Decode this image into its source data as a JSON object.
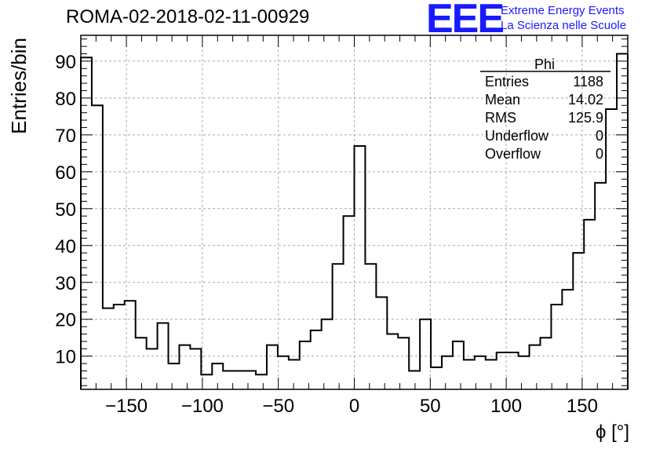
{
  "header": {
    "title": "ROMA-02-2018-02-11-00929",
    "logo": "EEE",
    "logo_line1": "Extreme Energy Events",
    "logo_line2": "La Scienza nelle Scuole"
  },
  "colors": {
    "logo": "#1a1aff",
    "line": "#000000",
    "grid": "#999999"
  },
  "stats_box": {
    "title": "Phi",
    "rows": [
      {
        "label": "Entries",
        "value": "1188"
      },
      {
        "label": "Mean",
        "value": "14.02"
      },
      {
        "label": "RMS",
        "value": "125.9"
      },
      {
        "label": "Underflow",
        "value": "0"
      },
      {
        "label": "Overflow",
        "value": "0"
      }
    ]
  },
  "chart_data": {
    "type": "histogram",
    "title": "ROMA-02-2018-02-11-00929",
    "xlabel": "ϕ [°]",
    "ylabel": "Entries/bin",
    "xlim": [
      -180,
      180
    ],
    "ylim": [
      1,
      97
    ],
    "bin_width": 7.2,
    "x_ticks": [
      -150,
      -100,
      -50,
      0,
      50,
      100,
      150
    ],
    "x_tick_labels": [
      "−150",
      "−100",
      "−50",
      "0",
      "50",
      "100",
      "150"
    ],
    "y_ticks": [
      10,
      20,
      30,
      40,
      50,
      60,
      70,
      80,
      90
    ],
    "y_tick_labels": [
      "10",
      "20",
      "30",
      "40",
      "50",
      "60",
      "70",
      "80",
      "90"
    ],
    "grid": true,
    "values": [
      91,
      78,
      23,
      24,
      25,
      15,
      12,
      19,
      8,
      13,
      12,
      5,
      8,
      6,
      6,
      6,
      5,
      13,
      10,
      9,
      14,
      17,
      20,
      35,
      48,
      67,
      35,
      26,
      16,
      15,
      6,
      20,
      7,
      10,
      14,
      9,
      10,
      9,
      11,
      11,
      10,
      13,
      15,
      24,
      28,
      38,
      47,
      57,
      77,
      92
    ]
  }
}
